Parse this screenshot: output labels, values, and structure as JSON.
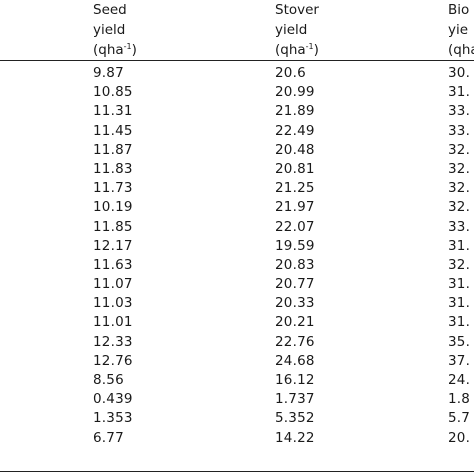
{
  "table": {
    "headers": {
      "seed": [
        "Seed",
        "yield",
        "(qha",
        "-1",
        ")"
      ],
      "stover": [
        "Stover",
        "yield",
        "(qha",
        "-1",
        ")"
      ],
      "biological": [
        "Bio",
        "yie",
        "(qha"
      ]
    },
    "rows": [
      [
        "9.87",
        "20.6",
        "30."
      ],
      [
        "10.85",
        "20.99",
        "31."
      ],
      [
        "11.31",
        "21.89",
        "33."
      ],
      [
        "11.45",
        "22.49",
        "33."
      ],
      [
        "11.87",
        "20.48",
        "32."
      ],
      [
        "11.83",
        "20.81",
        "32."
      ],
      [
        "11.73",
        "21.25",
        "32."
      ],
      [
        "10.19",
        "21.97",
        "32."
      ],
      [
        "11.85",
        "22.07",
        "33."
      ],
      [
        "12.17",
        "19.59",
        "31."
      ],
      [
        "11.63",
        "20.83",
        "32."
      ],
      [
        "11.07",
        "20.77",
        "31."
      ],
      [
        "11.03",
        "20.33",
        "31."
      ],
      [
        "11.01",
        "20.21",
        "31."
      ],
      [
        "12.33",
        "22.76",
        "35."
      ],
      [
        "12.76",
        "24.68",
        "37."
      ],
      [
        "8.56",
        "16.12",
        "24."
      ],
      [
        "0.439",
        "1.737",
        "1.8"
      ],
      [
        "1.353",
        "5.352",
        "5.7"
      ],
      [
        "6.77",
        "14.22",
        "20."
      ]
    ]
  }
}
